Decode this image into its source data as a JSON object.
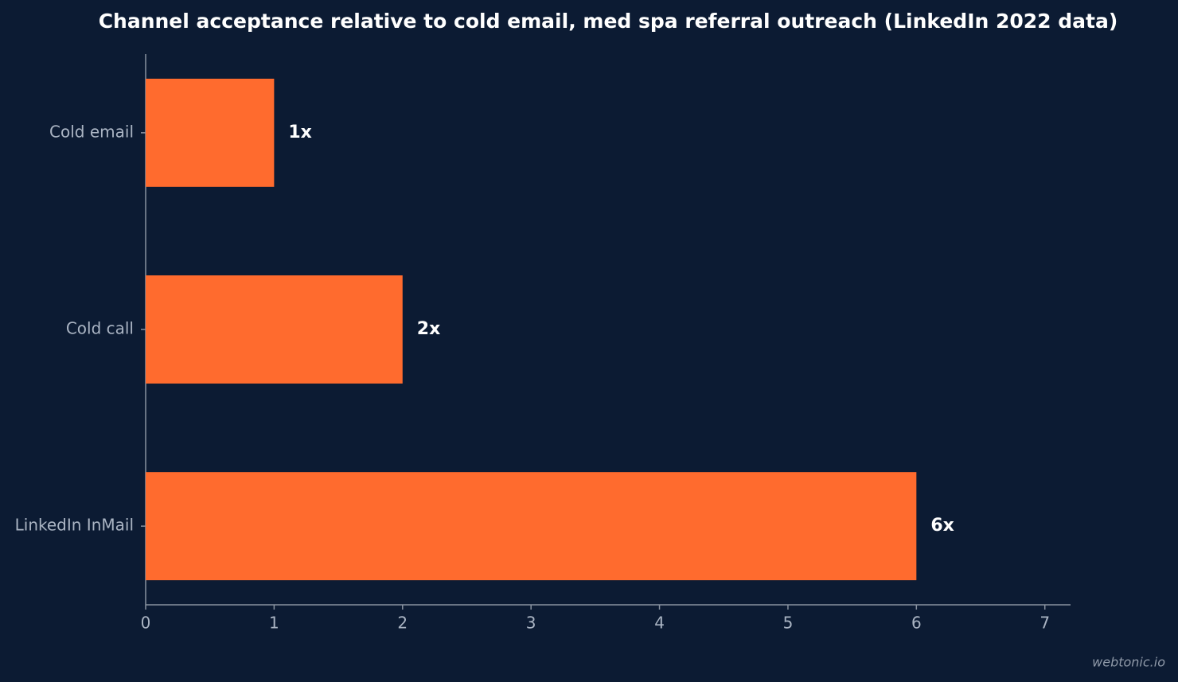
{
  "chart_data": {
    "type": "bar",
    "orientation": "horizontal",
    "title": "Channel acceptance relative to cold email, med spa referral outreach (LinkedIn 2022 data)",
    "categories": [
      "Cold email",
      "Cold call",
      "LinkedIn InMail"
    ],
    "values": [
      1,
      2,
      6
    ],
    "value_labels": [
      "1x",
      "2x",
      "6x"
    ],
    "color": "#ff6b2e",
    "xlim": [
      0,
      7.2
    ],
    "xticks": [
      0,
      1,
      2,
      3,
      4,
      5,
      6,
      7
    ],
    "grid": false,
    "watermark": "webtonic.io"
  }
}
